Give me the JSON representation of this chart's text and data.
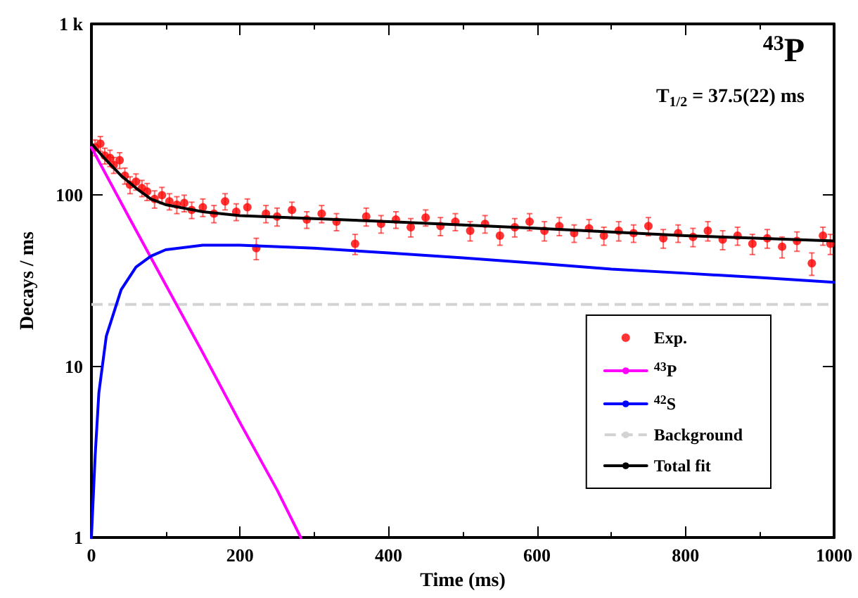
{
  "chart_data": {
    "type": "scatter",
    "xlabel": "Time (ms)",
    "ylabel": "Decays / ms",
    "log": "y",
    "grid": false,
    "legend": "bottom right",
    "xlim": [
      0,
      1000
    ],
    "xticks": [
      0,
      200,
      400,
      600,
      800,
      1000
    ],
    "ylim": [
      1,
      1000
    ],
    "yticks": [
      1,
      10,
      100,
      {
        "value": 1000,
        "label": "1 k"
      }
    ],
    "annotations": [
      "$^{43}$P",
      "T$_{1/2}$ = 37.5(22) ms"
    ],
    "ref_lines": [
      {
        "axis": "y",
        "value": 23,
        "label": "Background",
        "color": "#d3d3d3",
        "line_style": "dashed"
      }
    ],
    "series": [
      {
        "name": "Exp.",
        "marker": "circle",
        "color": "#ff0000",
        "x": [
          5,
          12,
          18,
          25,
          30,
          38,
          45,
          52,
          60,
          68,
          75,
          85,
          95,
          105,
          115,
          125,
          135,
          150,
          165,
          180,
          195,
          210,
          222,
          235,
          250,
          270,
          290,
          310,
          330,
          355,
          370,
          390,
          410,
          430,
          450,
          470,
          490,
          510,
          530,
          550,
          570,
          590,
          610,
          630,
          650,
          670,
          690,
          710,
          730,
          750,
          770,
          790,
          810,
          830,
          850,
          870,
          890,
          910,
          930,
          950,
          970,
          985,
          995
        ],
        "values": [
          190,
          200,
          170,
          165,
          150,
          160,
          130,
          115,
          120,
          110,
          105,
          95,
          100,
          92,
          88,
          90,
          82,
          85,
          78,
          92,
          80,
          85,
          49,
          78,
          75,
          82,
          72,
          78,
          70,
          52,
          75,
          68,
          72,
          65,
          74,
          66,
          70,
          62,
          68,
          58,
          65,
          70,
          62,
          66,
          60,
          64,
          58,
          62,
          60,
          66,
          56,
          60,
          57,
          62,
          55,
          58,
          52,
          56,
          50,
          54,
          40,
          58,
          52
        ],
        "errors": [
          20,
          20,
          18,
          18,
          16,
          17,
          14,
          13,
          13,
          12,
          12,
          11,
          11,
          10,
          10,
          10,
          9,
          10,
          9,
          10,
          9,
          10,
          7,
          9,
          9,
          9,
          8,
          9,
          8,
          7,
          9,
          8,
          8,
          8,
          8,
          8,
          8,
          8,
          8,
          7,
          8,
          8,
          8,
          8,
          7,
          8,
          7,
          8,
          7,
          8,
          7,
          7,
          7,
          8,
          7,
          7,
          7,
          7,
          7,
          7,
          6,
          7,
          7
        ]
      },
      {
        "name": "$^{43}$P",
        "type": "line",
        "marker": "none",
        "line_style": "solid",
        "color": "#ff00ff",
        "x": [
          0,
          50,
          100,
          150,
          200,
          250,
          282
        ],
        "values": [
          190,
          75,
          30,
          12,
          4.7,
          1.9,
          1
        ]
      },
      {
        "name": "$^{42}$S",
        "type": "line",
        "marker": "none",
        "line_style": "solid",
        "color": "#0000ff",
        "x": [
          0,
          5,
          10,
          20,
          40,
          60,
          80,
          100,
          150,
          200,
          300,
          400,
          500,
          600,
          700,
          800,
          900,
          1000
        ],
        "values": [
          1,
          3,
          7,
          15,
          28,
          38,
          44,
          48,
          51,
          51,
          49,
          46,
          43,
          40,
          37,
          35,
          33,
          31
        ]
      },
      {
        "name": "Total fit",
        "type": "line",
        "marker": "none",
        "line_style": "solid",
        "color": "#000000",
        "x": [
          0,
          20,
          40,
          60,
          80,
          100,
          150,
          200,
          300,
          400,
          500,
          600,
          700,
          800,
          900,
          1000
        ],
        "values": [
          200,
          160,
          130,
          110,
          95,
          88,
          80,
          76,
          73,
          70,
          67,
          64,
          61,
          58,
          56,
          54
        ]
      }
    ]
  }
}
